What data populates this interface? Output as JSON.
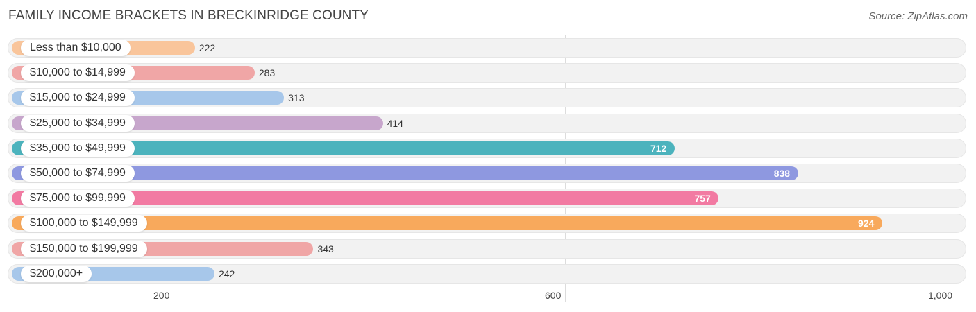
{
  "chart_data": {
    "type": "bar",
    "orientation": "horizontal",
    "title": "FAMILY INCOME BRACKETS IN BRECKINRIDGE COUNTY",
    "source": "Source: ZipAtlas.com",
    "categories": [
      "Less than $10,000",
      "$10,000 to $14,999",
      "$15,000 to $24,999",
      "$25,000 to $34,999",
      "$35,000 to $49,999",
      "$50,000 to $74,999",
      "$75,000 to $99,999",
      "$100,000 to $149,999",
      "$150,000 to $199,999",
      "$200,000+"
    ],
    "values": [
      222,
      283,
      313,
      414,
      712,
      838,
      757,
      924,
      343,
      242
    ],
    "value_labels": [
      "222",
      "283",
      "313",
      "414",
      "712",
      "838",
      "757",
      "924",
      "343",
      "242"
    ],
    "colors": [
      "#f9c59b",
      "#f0a6a6",
      "#a7c7ea",
      "#c7a6cc",
      "#4cb3bd",
      "#8e98e0",
      "#f27aa2",
      "#f8a95c",
      "#f0a6a6",
      "#a7c7ea"
    ],
    "xticks": [
      200,
      600,
      1000
    ],
    "xtick_labels": [
      "200",
      "600",
      "1,000"
    ],
    "xlim": [
      35,
      1040
    ],
    "grid": true
  }
}
